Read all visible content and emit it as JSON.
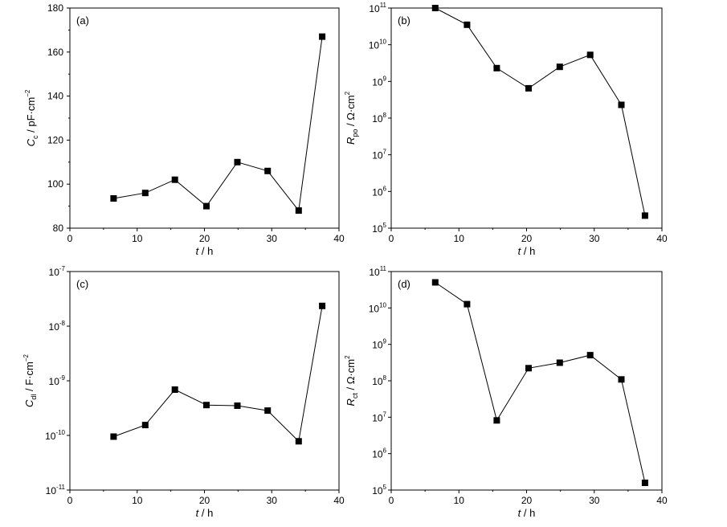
{
  "chart_data": [
    {
      "id": "a",
      "type": "line",
      "panel_label": "(a)",
      "xlabel": {
        "var": "t",
        "unit": " / h"
      },
      "ylabel": {
        "var": "C",
        "sub": "c",
        "unit": " / pF·cm",
        "sup": "−2"
      },
      "xlim": [
        0,
        40
      ],
      "ylim": [
        80,
        180
      ],
      "yscale": "linear",
      "xticks": [
        "0",
        "10",
        "20",
        "30",
        "40"
      ],
      "yticks": [
        "80",
        "100",
        "120",
        "140",
        "160",
        "180"
      ],
      "series": [
        {
          "x": [
            6.5,
            11.2,
            15.6,
            20.3,
            24.9,
            29.4,
            34.0,
            37.5
          ],
          "y": [
            93.5,
            96,
            102,
            90,
            110,
            106,
            88,
            167
          ]
        }
      ]
    },
    {
      "id": "b",
      "type": "line",
      "panel_label": "(b)",
      "xlabel": {
        "var": "t",
        "unit": " / h"
      },
      "ylabel": {
        "var": "R",
        "sub": "po",
        "unit": " / Ω·cm",
        "sup": "2"
      },
      "xlim": [
        0,
        40
      ],
      "ylim": [
        100000.0,
        100000000000.0
      ],
      "yscale": "log",
      "xticks": [
        "0",
        "10",
        "20",
        "30",
        "40"
      ],
      "yticks": [
        {
          "base": "10",
          "exp": "5"
        },
        {
          "base": "10",
          "exp": "6"
        },
        {
          "base": "10",
          "exp": "7"
        },
        {
          "base": "10",
          "exp": "8"
        },
        {
          "base": "10",
          "exp": "9"
        },
        {
          "base": "10",
          "exp": "10"
        },
        {
          "base": "10",
          "exp": "11"
        }
      ],
      "series": [
        {
          "x": [
            6.5,
            11.2,
            15.6,
            20.3,
            24.9,
            29.4,
            34.0,
            37.5
          ],
          "y": [
            100000000000.0,
            35000000000.0,
            2300000000.0,
            650000000.0,
            2500000000.0,
            5300000000.0,
            230000000.0,
            220000.0
          ]
        }
      ]
    },
    {
      "id": "c",
      "type": "line",
      "panel_label": "(c)",
      "xlabel": {
        "var": "t",
        "unit": " / h"
      },
      "ylabel": {
        "var": "C",
        "sub": "dl",
        "unit": " / F·cm",
        "sup": "−2"
      },
      "xlim": [
        0,
        40
      ],
      "ylim": [
        1e-11,
        1e-07
      ],
      "yscale": "log",
      "xticks": [
        "0",
        "10",
        "20",
        "30",
        "40"
      ],
      "yticks": [
        {
          "base": "10",
          "exp": "-11"
        },
        {
          "base": "10",
          "exp": "-10"
        },
        {
          "base": "10",
          "exp": "-9"
        },
        {
          "base": "10",
          "exp": "-8"
        },
        {
          "base": "10",
          "exp": "-7"
        }
      ],
      "series": [
        {
          "x": [
            6.5,
            11.2,
            15.6,
            20.3,
            24.9,
            29.4,
            34.0,
            37.5
          ],
          "y": [
            9.5e-11,
            1.55e-10,
            6.9e-10,
            3.6e-10,
            3.5e-10,
            2.85e-10,
            7.8e-11,
            2.35e-08
          ]
        }
      ]
    },
    {
      "id": "d",
      "type": "line",
      "panel_label": "(d)",
      "xlabel": {
        "var": "t",
        "unit": " / h"
      },
      "ylabel": {
        "var": "R",
        "sub": "ct",
        "unit": " / Ω·cm",
        "sup": "2"
      },
      "xlim": [
        0,
        40
      ],
      "ylim": [
        100000.0,
        1000000000000.0
      ],
      "yscale": "log",
      "xticks": [
        "0",
        "10",
        "20",
        "30",
        "40"
      ],
      "yticks": [
        {
          "base": "10",
          "exp": "5"
        },
        {
          "base": "10",
          "exp": "6"
        },
        {
          "base": "10",
          "exp": "7"
        },
        {
          "base": "10",
          "exp": "8"
        },
        {
          "base": "10",
          "exp": "9"
        },
        {
          "base": "10",
          "exp": "10"
        },
        {
          "base": "10",
          "exp": "11"
        }
      ],
      "series": [
        {
          "x": [
            6.5,
            11.2,
            15.6,
            20.3,
            24.9,
            29.4,
            34.0,
            37.5
          ],
          "y": [
            450000000000.0,
            90000000000.0,
            17000000.0,
            800000000.0,
            1200000000.0,
            2100000000.0,
            350000000.0,
            170000.0
          ]
        }
      ]
    }
  ]
}
